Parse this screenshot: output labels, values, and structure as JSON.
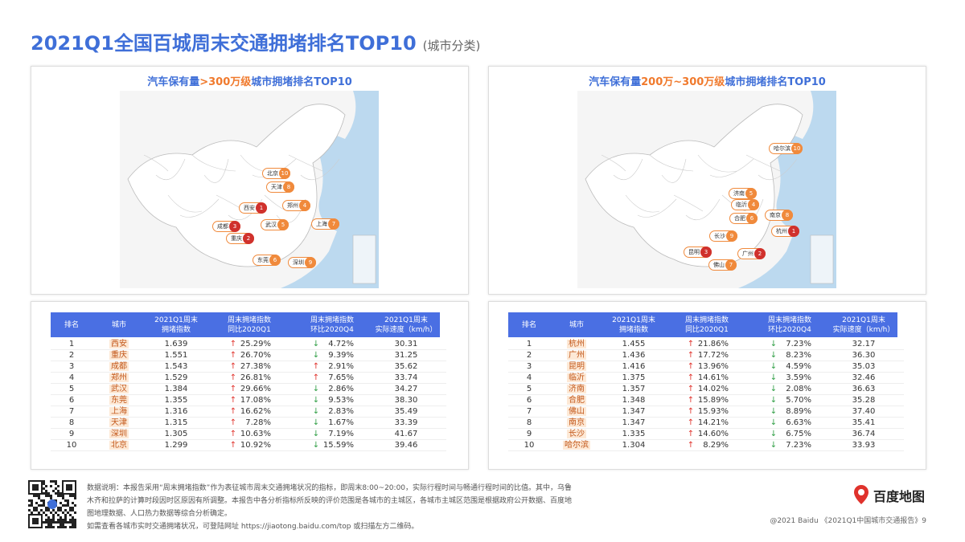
{
  "header": {
    "title": "2021Q1全国百城周末交通拥堵排名TOP10",
    "subtitle": "(城市分类)"
  },
  "panels": [
    {
      "heading": {
        "pre": "汽车保有量",
        "highlight": ">300万级",
        "post": "城市拥堵排名TOP10"
      },
      "map": [
        {
          "city": "北京",
          "rank": "10"
        },
        {
          "city": "天津",
          "rank": "8"
        },
        {
          "city": "郑州",
          "rank": "4"
        },
        {
          "city": "西安",
          "rank": "1"
        },
        {
          "city": "成都",
          "rank": "3"
        },
        {
          "city": "重庆",
          "rank": "2"
        },
        {
          "city": "武汉",
          "rank": "5"
        },
        {
          "city": "上海",
          "rank": "7"
        },
        {
          "city": "东莞",
          "rank": "6"
        },
        {
          "city": "深圳",
          "rank": "9"
        }
      ],
      "table": {
        "columns": [
          "排名",
          "城市",
          "2021Q1周末\n拥堵指数",
          "周末拥堵指数\n同比2020Q1",
          "周末拥堵指数\n环比2020Q4",
          "2021Q1周末\n实际速度（km/h）"
        ],
        "rows": [
          [
            "1",
            "西安",
            "1.639",
            {
              "dir": "↑",
              "value": "25.29%"
            },
            {
              "dir": "↓",
              "value": "4.72%"
            },
            "30.31"
          ],
          [
            "2",
            "重庆",
            "1.551",
            {
              "dir": "↑",
              "value": "26.70%"
            },
            {
              "dir": "↓",
              "value": "9.39%"
            },
            "31.25"
          ],
          [
            "3",
            "成都",
            "1.543",
            {
              "dir": "↑",
              "value": "27.38%"
            },
            {
              "dir": "↑",
              "value": "2.91%"
            },
            "35.62"
          ],
          [
            "4",
            "郑州",
            "1.529",
            {
              "dir": "↑",
              "value": "26.81%"
            },
            {
              "dir": "↑",
              "value": "7.65%"
            },
            "33.74"
          ],
          [
            "5",
            "武汉",
            "1.384",
            {
              "dir": "↑",
              "value": "29.66%"
            },
            {
              "dir": "↓",
              "value": "2.86%"
            },
            "34.27"
          ],
          [
            "6",
            "东莞",
            "1.355",
            {
              "dir": "↑",
              "value": "17.08%"
            },
            {
              "dir": "↓",
              "value": "9.53%"
            },
            "38.30"
          ],
          [
            "7",
            "上海",
            "1.316",
            {
              "dir": "↑",
              "value": "16.62%"
            },
            {
              "dir": "↓",
              "value": "2.83%"
            },
            "35.49"
          ],
          [
            "8",
            "天津",
            "1.315",
            {
              "dir": "↑",
              "value": "7.28%"
            },
            {
              "dir": "↓",
              "value": "1.67%"
            },
            "33.39"
          ],
          [
            "9",
            "深圳",
            "1.305",
            {
              "dir": "↑",
              "value": "10.63%"
            },
            {
              "dir": "↓",
              "value": "7.19%"
            },
            "41.67"
          ],
          [
            "10",
            "北京",
            "1.299",
            {
              "dir": "↑",
              "value": "10.92%"
            },
            {
              "dir": "↓",
              "value": "15.59%"
            },
            "39.46"
          ]
        ]
      }
    },
    {
      "heading": {
        "pre": "汽车保有量",
        "highlight": "200万~300万级",
        "post": "城市拥堵排名TOP10"
      },
      "map": [
        {
          "city": "哈尔滨",
          "rank": "10"
        },
        {
          "city": "济南",
          "rank": "5"
        },
        {
          "city": "临沂",
          "rank": "4"
        },
        {
          "city": "合肥",
          "rank": "6"
        },
        {
          "city": "南京",
          "rank": "8"
        },
        {
          "city": "杭州",
          "rank": "1"
        },
        {
          "city": "长沙",
          "rank": "9"
        },
        {
          "city": "昆明",
          "rank": "3"
        },
        {
          "city": "广州",
          "rank": "2"
        },
        {
          "city": "佛山",
          "rank": "7"
        }
      ],
      "table": {
        "columns": [
          "排名",
          "城市",
          "2021Q1周末\n拥堵指数",
          "周末拥堵指数\n同比2020Q1",
          "周末拥堵指数\n环比2020Q4",
          "2021Q1周末\n实际速度（km/h）"
        ],
        "rows": [
          [
            "1",
            "杭州",
            "1.455",
            {
              "dir": "↑",
              "value": "21.86%"
            },
            {
              "dir": "↓",
              "value": "7.23%"
            },
            "32.17"
          ],
          [
            "2",
            "广州",
            "1.436",
            {
              "dir": "↑",
              "value": "17.72%"
            },
            {
              "dir": "↓",
              "value": "8.23%"
            },
            "36.30"
          ],
          [
            "3",
            "昆明",
            "1.416",
            {
              "dir": "↑",
              "value": "13.96%"
            },
            {
              "dir": "↓",
              "value": "4.59%"
            },
            "35.03"
          ],
          [
            "4",
            "临沂",
            "1.375",
            {
              "dir": "↑",
              "value": "14.61%"
            },
            {
              "dir": "↓",
              "value": "3.59%"
            },
            "32.46"
          ],
          [
            "5",
            "济南",
            "1.357",
            {
              "dir": "↑",
              "value": "14.02%"
            },
            {
              "dir": "↓",
              "value": "2.08%"
            },
            "36.63"
          ],
          [
            "6",
            "合肥",
            "1.348",
            {
              "dir": "↑",
              "value": "15.89%"
            },
            {
              "dir": "↓",
              "value": "5.70%"
            },
            "35.28"
          ],
          [
            "7",
            "佛山",
            "1.347",
            {
              "dir": "↑",
              "value": "15.93%"
            },
            {
              "dir": "↓",
              "value": "8.89%"
            },
            "37.40"
          ],
          [
            "8",
            "南京",
            "1.347",
            {
              "dir": "↑",
              "value": "14.21%"
            },
            {
              "dir": "↓",
              "value": "6.63%"
            },
            "35.41"
          ],
          [
            "9",
            "长沙",
            "1.335",
            {
              "dir": "↑",
              "value": "14.60%"
            },
            {
              "dir": "↓",
              "value": "6.75%"
            },
            "36.74"
          ],
          [
            "10",
            "哈尔滨",
            "1.304",
            {
              "dir": "↑",
              "value": "8.29%"
            },
            {
              "dir": "↓",
              "value": "7.23%"
            },
            "33.93"
          ]
        ]
      }
    }
  ],
  "footer": {
    "notes": [
      "数据说明：本报告采用“周末拥堵指数”作为表征城市周末交通拥堵状况的指标，即周末8:00~20:00，实际行程时间与畅通行程时间的比值。其中，乌鲁",
      "木齐和拉萨的计算时段因时区原因有所调整。本报告中各分析指标所反映的评价范围是各城市的主城区，各城市主城区范围是根据政府公开数据、百度地",
      "图地理数据、人口热力数据等综合分析确定。",
      "如需查看各城市实时交通拥堵状况，可登陆网址 https://jiaotong.baidu.com/top 或扫描左方二维码。"
    ],
    "logo": "百度地图",
    "copyright": "@2021 Baidu 《2021Q1中国城市交通报告》9"
  }
}
